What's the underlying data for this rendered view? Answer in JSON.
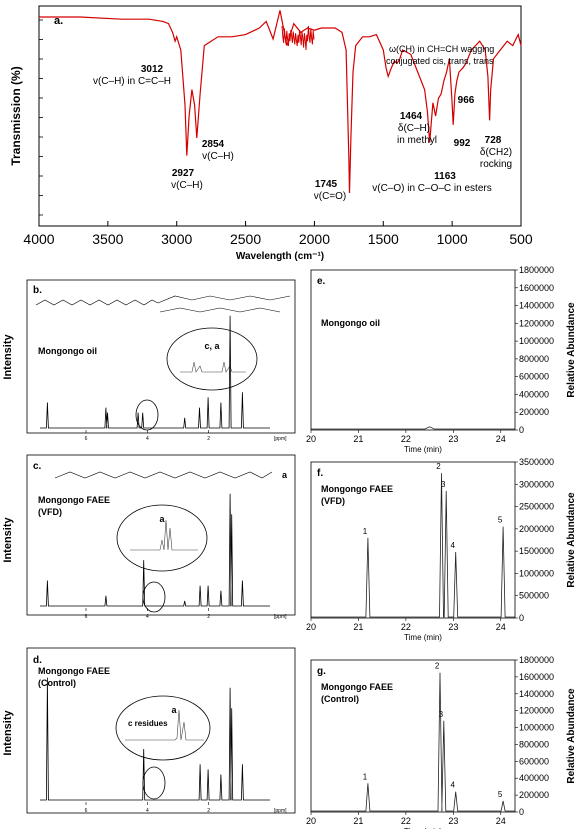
{
  "ftir": {
    "panel_label": "a.",
    "xlabel": "Wavelength (cm⁻¹)",
    "ylabel": "Transmission (%)",
    "x_ticks": [
      "4000",
      "3500",
      "3000",
      "2500",
      "2000",
      "1500",
      "1000",
      "500"
    ],
    "annotations": [
      {
        "top": "3012",
        "bottom": "v(C–H) in C=C–H"
      },
      {
        "top": "2854",
        "bottom": "v(C–H)"
      },
      {
        "top": "2927",
        "bottom": "v(C–H)"
      },
      {
        "top": "1745",
        "bottom": "v(C=O)"
      },
      {
        "top": "1464",
        "bottom": "δ(C–H)",
        "extra": "in methyl"
      },
      {
        "top": "1163",
        "bottom": "v(C–O) in C–O–C in esters"
      },
      {
        "top": "992"
      },
      {
        "top": "966"
      },
      {
        "top": "728",
        "bottom": "δ(CH2)",
        "extra": "rocking"
      },
      {
        "top": "ω(CH) in CH=CH wagging",
        "bottom": "conjugated cis, trans, trans"
      }
    ]
  },
  "nmr": {
    "ylabel": "Intensity",
    "panels": [
      {
        "label": "b.",
        "sample": "Mongongo oil",
        "sample2": "",
        "inset": "c, a"
      },
      {
        "label": "c.",
        "sample": "Mongongo FAEE",
        "sample2": "(VFD)",
        "inset": "a"
      },
      {
        "label": "d.",
        "sample": "Mongongo FAEE",
        "sample2": "(Control)",
        "inset": "a",
        "inset2": "c residues"
      }
    ],
    "ppm_ticks": [
      "6",
      "4",
      "2"
    ],
    "ppm_unit": "[ppm]",
    "peak_label_a": "a"
  },
  "gc": {
    "xlabel": "Time (min)",
    "ylabel": "Relative Abundance",
    "x_ticks": [
      "20",
      "21",
      "22",
      "23",
      "24"
    ],
    "panels": [
      {
        "label": "e.",
        "sample": "Mongongo oil",
        "sample2": "",
        "y_ticks": [
          "0",
          "200000",
          "400000",
          "600000",
          "800000",
          "1000000",
          "1200000",
          "1400000",
          "1600000",
          "1800000"
        ]
      },
      {
        "label": "f.",
        "sample": "Mongongo FAEE",
        "sample2": "(VFD)",
        "y_ticks": [
          "0",
          "500000",
          "1000000",
          "1500000",
          "2000000",
          "2500000",
          "3000000",
          "3500000"
        ]
      },
      {
        "label": "g.",
        "sample": "Mongongo FAEE",
        "sample2": "(Control)",
        "y_ticks": [
          "0",
          "200000",
          "400000",
          "600000",
          "800000",
          "1000000",
          "1200000",
          "1400000",
          "1600000",
          "1800000"
        ]
      }
    ]
  },
  "chart_data": [
    {
      "type": "line",
      "title": "",
      "xlabel": "Wavelength (cm⁻¹)",
      "ylabel": "Transmission (%)",
      "xlim": [
        4000,
        500
      ],
      "series": [
        {
          "color": "#d40000",
          "x": [
            4000,
            3700,
            3400,
            3200,
            3100,
            3060,
            3030,
            3012,
            3000,
            2970,
            2940,
            2927,
            2910,
            2890,
            2870,
            2854,
            2830,
            2800,
            2700,
            2600,
            2500,
            2400,
            2350,
            2300,
            2250,
            2200,
            2150,
            2100,
            2050,
            2000,
            1950,
            1900,
            1850,
            1800,
            1770,
            1750,
            1745,
            1735,
            1720,
            1700,
            1650,
            1600,
            1550,
            1500,
            1480,
            1464,
            1440,
            1420,
            1400,
            1380,
            1360,
            1300,
            1250,
            1200,
            1180,
            1163,
            1140,
            1120,
            1100,
            1080,
            1060,
            1040,
            1020,
            1000,
            992,
            980,
            966,
            950,
            920,
            900,
            860,
            800,
            760,
            740,
            728,
            720,
            700,
            650,
            600,
            560,
            520,
            500
          ],
          "y": [
            95,
            95,
            94,
            94,
            93,
            92,
            88,
            84,
            86,
            80,
            55,
            32,
            50,
            62,
            55,
            40,
            60,
            82,
            86,
            86,
            87,
            90,
            93,
            85,
            98,
            82,
            92,
            88,
            90,
            89,
            90,
            90,
            90,
            88,
            80,
            30,
            15,
            40,
            70,
            82,
            86,
            86,
            87,
            80,
            72,
            68,
            72,
            75,
            74,
            76,
            80,
            78,
            70,
            62,
            52,
            38,
            56,
            50,
            58,
            60,
            66,
            70,
            76,
            56,
            46,
            60,
            66,
            70,
            72,
            74,
            80,
            84,
            80,
            68,
            48,
            62,
            76,
            80,
            84,
            82,
            87,
            82
          ]
        }
      ]
    },
    {
      "type": "line",
      "title": "",
      "ylabel": "Intensity",
      "xlabel": "[ppm]",
      "xlim": [
        7.5,
        0
      ],
      "series": [
        {
          "name": "Mongongo oil",
          "x": [
            7.26,
            5.35,
            5.3,
            4.3,
            4.15,
            2.78,
            2.3,
            2.02,
            1.6,
            1.3,
            0.9
          ],
          "y": [
            5,
            4,
            3,
            3,
            3,
            2,
            4,
            6,
            5,
            22,
            7
          ]
        }
      ]
    },
    {
      "type": "line",
      "title": "",
      "ylabel": "Intensity",
      "xlabel": "[ppm]",
      "xlim": [
        7.5,
        0
      ],
      "series": [
        {
          "name": "Mongongo FAEE (VFD)",
          "x": [
            7.26,
            5.35,
            4.12,
            2.78,
            2.28,
            2.02,
            1.6,
            1.3,
            1.25,
            0.9
          ],
          "y": [
            5,
            2,
            9,
            1,
            4,
            4,
            3,
            22,
            18,
            5
          ]
        }
      ]
    },
    {
      "type": "line",
      "title": "",
      "ylabel": "Intensity",
      "xlabel": "[ppm]",
      "xlim": [
        7.5,
        0
      ],
      "series": [
        {
          "name": "Mongongo FAEE (Control)",
          "x": [
            7.26,
            4.12,
            2.28,
            2.02,
            1.6,
            1.3,
            1.25,
            0.9
          ],
          "y": [
            24,
            10,
            7,
            6,
            5,
            22,
            18,
            7
          ]
        }
      ]
    },
    {
      "type": "line",
      "title": "",
      "xlabel": "Time (min)",
      "ylabel": "Relative Abundance",
      "xlim": [
        20,
        24.3
      ],
      "ylim": [
        0,
        1800000
      ],
      "series": [
        {
          "name": "Mongongo oil",
          "x": [
            20,
            22.4,
            22.5,
            22.6,
            24.3
          ],
          "y": [
            0,
            0,
            25000,
            0,
            0
          ]
        }
      ]
    },
    {
      "type": "line",
      "title": "",
      "xlabel": "Time (min)",
      "ylabel": "Relative Abundance",
      "xlim": [
        20,
        24.3
      ],
      "ylim": [
        0,
        3500000
      ],
      "peaks": [
        {
          "label": "1",
          "x": 21.2,
          "y": 1800000
        },
        {
          "label": "2",
          "x": 22.75,
          "y": 3250000
        },
        {
          "label": "3",
          "x": 22.85,
          "y": 2850000
        },
        {
          "label": "4",
          "x": 23.05,
          "y": 1480000
        },
        {
          "label": "5",
          "x": 24.05,
          "y": 2050000
        }
      ]
    },
    {
      "type": "line",
      "title": "",
      "xlabel": "Time (min)",
      "ylabel": "Relative Abundance",
      "xlim": [
        20,
        24.3
      ],
      "ylim": [
        0,
        1800000
      ],
      "peaks": [
        {
          "label": "1",
          "x": 21.2,
          "y": 340000
        },
        {
          "label": "2",
          "x": 22.72,
          "y": 1650000
        },
        {
          "label": "3",
          "x": 22.8,
          "y": 1080000
        },
        {
          "label": "4",
          "x": 23.05,
          "y": 240000
        },
        {
          "label": "5",
          "x": 24.05,
          "y": 130000
        }
      ]
    }
  ]
}
